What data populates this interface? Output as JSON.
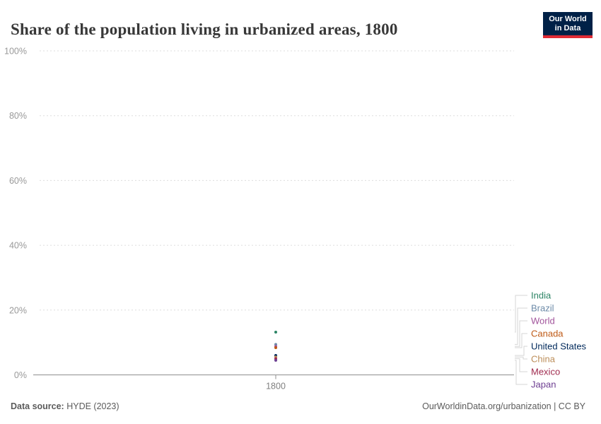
{
  "header": {
    "title": "Share of the population living in urbanized areas, 1800"
  },
  "logo": {
    "line1": "Our World",
    "line2": "in Data",
    "bg_color": "#002147",
    "accent_color": "#E02B35"
  },
  "chart_data": {
    "type": "scatter",
    "title": "Share of the population living in urbanized areas, 1800",
    "xlabel": "",
    "ylabel": "",
    "x": [
      1800
    ],
    "x_tick_labels": [
      "1800"
    ],
    "ylim": [
      0,
      100
    ],
    "y_ticks": [
      0,
      20,
      40,
      60,
      80,
      100
    ],
    "y_tick_labels": [
      "0%",
      "20%",
      "40%",
      "60%",
      "80%",
      "100%"
    ],
    "grid": "horizontal-dashed",
    "legend_position": "right-entity-labels",
    "series": [
      {
        "name": "India",
        "year": 1800,
        "value": 13.2,
        "color": "#2C8465"
      },
      {
        "name": "Brazil",
        "year": 1800,
        "value": 9.4,
        "color": "#6D8BA8"
      },
      {
        "name": "World",
        "year": 1800,
        "value": 8.8,
        "color": "#A2559C"
      },
      {
        "name": "Canada",
        "year": 1800,
        "value": 8.4,
        "color": "#BE5915"
      },
      {
        "name": "United States",
        "year": 1800,
        "value": 6.0,
        "color": "#00295B"
      },
      {
        "name": "China",
        "year": 1800,
        "value": 5.5,
        "color": "#BC8E5A"
      },
      {
        "name": "Mexico",
        "year": 1800,
        "value": 5.0,
        "color": "#A02B4F"
      },
      {
        "name": "Japan",
        "year": 1800,
        "value": 4.5,
        "color": "#6D3E91"
      }
    ]
  },
  "footer": {
    "source_label": "Data source:",
    "source_value": " HYDE (2023)",
    "credit": "OurWorldinData.org/urbanization | CC BY"
  },
  "colors": {
    "grid": "#DDDDDD",
    "axis": "#8F8F8F",
    "tick_text": "#999999",
    "x_tick_text": "#808080",
    "leader_line": "#D6D6D6"
  }
}
